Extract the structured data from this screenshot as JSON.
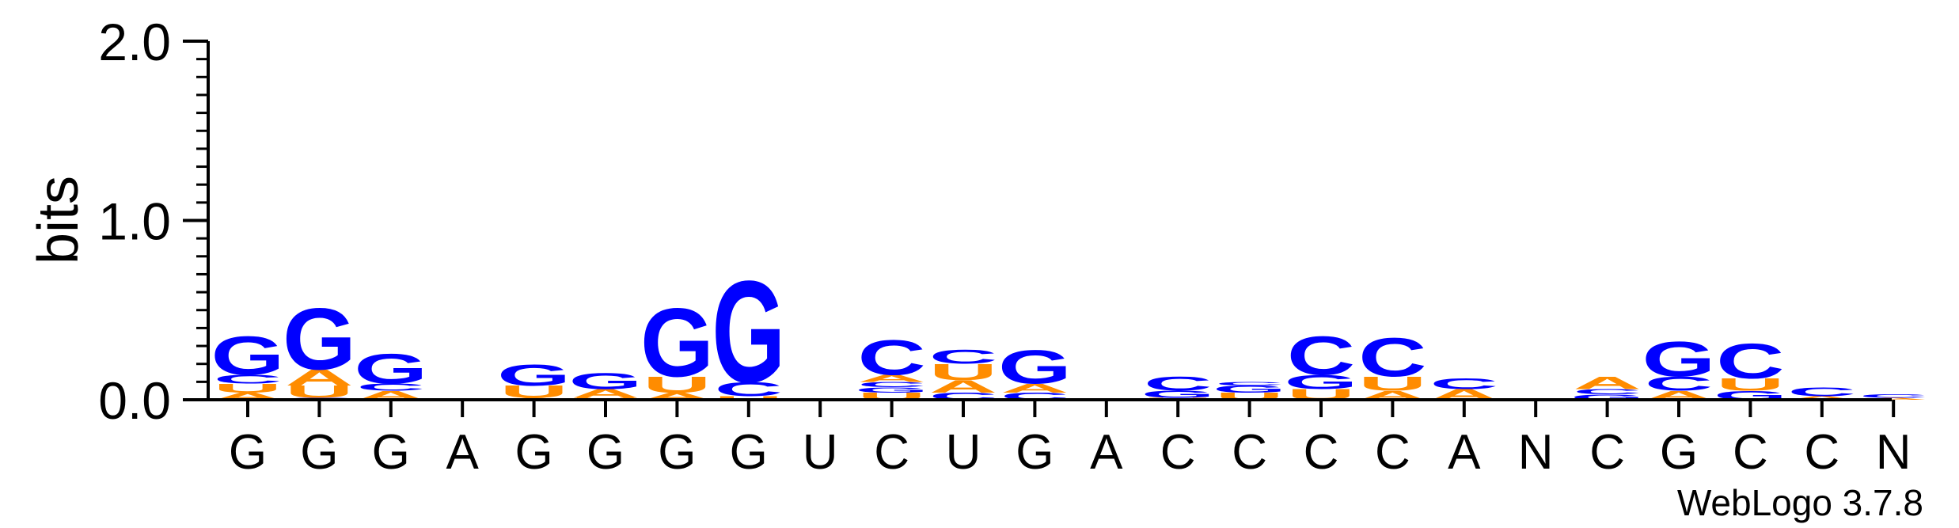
{
  "chart_data": {
    "type": "sequence-logo",
    "ylabel": "bits",
    "ylim": [
      0,
      2.0
    ],
    "yticks": [
      "0.0",
      "1.0",
      "2.0"
    ],
    "credit": "WebLogo 3.7.8",
    "positions": [
      {
        "label": "G",
        "stack": [
          {
            "letter": "A",
            "bits": 0.04
          },
          {
            "letter": "U",
            "bits": 0.05
          },
          {
            "letter": "C",
            "bits": 0.05
          },
          {
            "letter": "G",
            "bits": 0.22
          }
        ]
      },
      {
        "label": "G",
        "stack": [
          {
            "letter": "C",
            "bits": 0.01
          },
          {
            "letter": "U",
            "bits": 0.07
          },
          {
            "letter": "A",
            "bits": 0.09
          },
          {
            "letter": "G",
            "bits": 0.35
          }
        ]
      },
      {
        "label": "G",
        "stack": [
          {
            "letter": "A",
            "bits": 0.05
          },
          {
            "letter": "C",
            "bits": 0.04
          },
          {
            "letter": "G",
            "bits": 0.17
          }
        ]
      },
      {
        "label": "A",
        "stack": []
      },
      {
        "label": "G",
        "stack": [
          {
            "letter": "A",
            "bits": 0.01
          },
          {
            "letter": "U",
            "bits": 0.07
          },
          {
            "letter": "G",
            "bits": 0.12
          }
        ]
      },
      {
        "label": "G",
        "stack": [
          {
            "letter": "U",
            "bits": 0.01
          },
          {
            "letter": "A",
            "bits": 0.05
          },
          {
            "letter": "G",
            "bits": 0.09
          }
        ]
      },
      {
        "label": "G",
        "stack": [
          {
            "letter": "A",
            "bits": 0.04
          },
          {
            "letter": "U",
            "bits": 0.09
          },
          {
            "letter": "G",
            "bits": 0.39
          }
        ]
      },
      {
        "label": "G",
        "stack": [
          {
            "letter": "U",
            "bits": 0.02
          },
          {
            "letter": "C",
            "bits": 0.08
          },
          {
            "letter": "G",
            "bits": 0.58
          }
        ]
      },
      {
        "label": "U",
        "stack": []
      },
      {
        "label": "C",
        "stack": [
          {
            "letter": "U",
            "bits": 0.04
          },
          {
            "letter": "G",
            "bits": 0.03
          },
          {
            "letter": "C",
            "bits": 0.03
          },
          {
            "letter": "A",
            "bits": 0.04
          },
          {
            "letter": "C",
            "bits": 0.2
          }
        ]
      },
      {
        "label": "U",
        "stack": [
          {
            "letter": "C",
            "bits": 0.04
          },
          {
            "letter": "A",
            "bits": 0.07
          },
          {
            "letter": "U",
            "bits": 0.09
          },
          {
            "letter": "C",
            "bits": 0.08
          }
        ]
      },
      {
        "label": "G",
        "stack": [
          {
            "letter": "C",
            "bits": 0.04
          },
          {
            "letter": "A",
            "bits": 0.05
          },
          {
            "letter": "G",
            "bits": 0.19
          }
        ]
      },
      {
        "label": "A",
        "stack": []
      },
      {
        "label": "C",
        "stack": [
          {
            "letter": "U",
            "bits": 0.01
          },
          {
            "letter": "G",
            "bits": 0.04
          },
          {
            "letter": "C",
            "bits": 0.08
          }
        ]
      },
      {
        "label": "C",
        "stack": [
          {
            "letter": "U",
            "bits": 0.04
          },
          {
            "letter": "G",
            "bits": 0.04
          },
          {
            "letter": "C",
            "bits": 0.02
          }
        ]
      },
      {
        "label": "C",
        "stack": [
          {
            "letter": "U",
            "bits": 0.06
          },
          {
            "letter": "G",
            "bits": 0.08
          },
          {
            "letter": "C",
            "bits": 0.22
          }
        ]
      },
      {
        "label": "C",
        "stack": [
          {
            "letter": "A",
            "bits": 0.05
          },
          {
            "letter": "U",
            "bits": 0.08
          },
          {
            "letter": "C",
            "bits": 0.22
          }
        ]
      },
      {
        "label": "A",
        "stack": [
          {
            "letter": "A",
            "bits": 0.06
          },
          {
            "letter": "C",
            "bits": 0.06
          }
        ]
      },
      {
        "label": "N",
        "stack": []
      },
      {
        "label": "C",
        "stack": [
          {
            "letter": "G",
            "bits": 0.03
          },
          {
            "letter": "C",
            "bits": 0.03
          },
          {
            "letter": "A",
            "bits": 0.07
          }
        ]
      },
      {
        "label": "G",
        "stack": [
          {
            "letter": "A",
            "bits": 0.05
          },
          {
            "letter": "C",
            "bits": 0.08
          },
          {
            "letter": "G",
            "bits": 0.2
          }
        ]
      },
      {
        "label": "C",
        "stack": [
          {
            "letter": "G",
            "bits": 0.05
          },
          {
            "letter": "U",
            "bits": 0.07
          },
          {
            "letter": "C",
            "bits": 0.2
          }
        ]
      },
      {
        "label": "C",
        "stack": [
          {
            "letter": "A",
            "bits": 0.02
          },
          {
            "letter": "C",
            "bits": 0.05
          }
        ]
      },
      {
        "label": "N",
        "stack": [
          {
            "letter": "A",
            "bits": 0.01
          },
          {
            "letter": "C",
            "bits": 0.02
          }
        ]
      }
    ],
    "colors": {
      "G": "#0000ff",
      "C": "#0000ff",
      "A": "#ff8c00",
      "U": "#ff8c00",
      "axis": "#000000"
    }
  }
}
